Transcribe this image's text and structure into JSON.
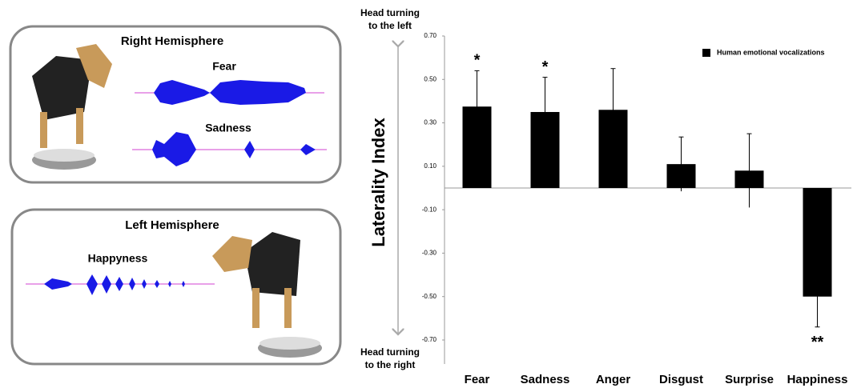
{
  "panels": {
    "right": {
      "title": "Right Hemisphere",
      "sounds": [
        "Fear",
        "Sadness"
      ]
    },
    "left": {
      "title": "Left Hemisphere",
      "sounds": [
        "Happyness"
      ]
    }
  },
  "chart_data": {
    "type": "bar",
    "y_label": "Laterality Index",
    "top_annotation": [
      "Head turning",
      "to the left"
    ],
    "bottom_annotation": [
      "Head turning",
      "to the right"
    ],
    "categories": [
      "Fear",
      "Sadness",
      "Anger",
      "Disgust",
      "Surprise",
      "Happiness"
    ],
    "series": [
      {
        "name": "Human emotional vocalizations",
        "color": "#000000",
        "values": [
          0.375,
          0.35,
          0.36,
          0.11,
          0.08,
          -0.5
        ],
        "errors": [
          0.165,
          0.16,
          0.19,
          0.125,
          0.17,
          0.14
        ]
      }
    ],
    "significance_labels": [
      "*",
      "*",
      null,
      null,
      null,
      "**"
    ],
    "ylim": [
      -0.7,
      0.7
    ],
    "yticks": [
      {
        "value": 0.7,
        "label": "0.70"
      },
      {
        "value": 0.5,
        "label": "0.50"
      },
      {
        "value": 0.3,
        "label": "0.30"
      },
      {
        "value": 0.1,
        "label": "0.10"
      },
      {
        "value": -0.1,
        "label": "-0.10"
      },
      {
        "value": -0.3,
        "label": "-0.30"
      },
      {
        "value": -0.5,
        "label": "-0.50"
      },
      {
        "value": -0.7,
        "label": "-0.70"
      }
    ],
    "grid": false,
    "legend": "upper right"
  }
}
